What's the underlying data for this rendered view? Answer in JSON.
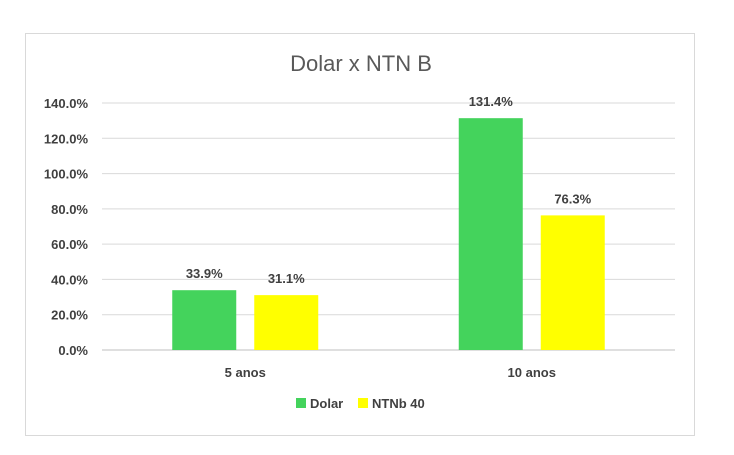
{
  "chart_data": {
    "type": "bar",
    "title": "Dolar x NTN B",
    "categories": [
      "5 anos",
      "10 anos"
    ],
    "series": [
      {
        "name": "Dolar",
        "color": "#44d35c",
        "values": [
          33.9,
          131.4
        ],
        "labels": [
          "33.9%",
          "131.4%"
        ]
      },
      {
        "name": "NTNb 40",
        "color": "#ffff00",
        "values": [
          31.1,
          76.3
        ],
        "labels": [
          "31.1%",
          "76.3%"
        ]
      }
    ],
    "ylim": [
      0,
      140
    ],
    "yticks": [
      0,
      20,
      40,
      60,
      80,
      100,
      120,
      140
    ],
    "ytick_labels": [
      "0.0%",
      "20.0%",
      "40.0%",
      "60.0%",
      "80.0%",
      "100.0%",
      "120.0%",
      "140.0%"
    ],
    "grid": true,
    "legend_position": "bottom"
  }
}
